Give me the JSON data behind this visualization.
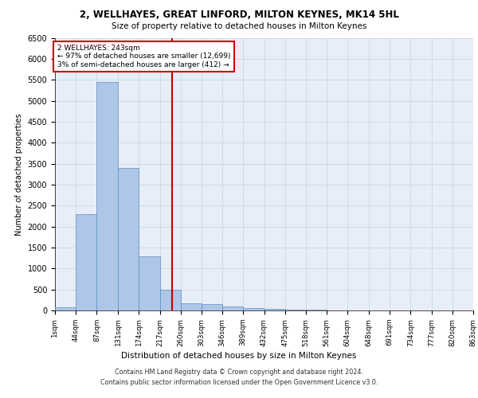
{
  "title1": "2, WELLHAYES, GREAT LINFORD, MILTON KEYNES, MK14 5HL",
  "title2": "Size of property relative to detached houses in Milton Keynes",
  "xlabel": "Distribution of detached houses by size in Milton Keynes",
  "ylabel": "Number of detached properties",
  "footer1": "Contains HM Land Registry data © Crown copyright and database right 2024.",
  "footer2": "Contains public sector information licensed under the Open Government Licence v3.0.",
  "annotation_title": "2 WELLHAYES: 243sqm",
  "annotation_line1": "← 97% of detached houses are smaller (12,699)",
  "annotation_line2": "3% of semi-detached houses are larger (412) →",
  "property_size": 243,
  "bar_values": [
    70,
    2300,
    5450,
    3400,
    1300,
    490,
    175,
    150,
    90,
    55,
    35,
    20,
    10,
    5,
    0,
    0,
    0,
    0,
    0,
    0
  ],
  "bin_edges": [
    1,
    44,
    87,
    131,
    174,
    217,
    260,
    303,
    346,
    389,
    432,
    475,
    518,
    561,
    604,
    648,
    691,
    734,
    777,
    820,
    863
  ],
  "bin_labels": [
    "1sqm",
    "44sqm",
    "87sqm",
    "131sqm",
    "174sqm",
    "217sqm",
    "260sqm",
    "303sqm",
    "346sqm",
    "389sqm",
    "432sqm",
    "475sqm",
    "518sqm",
    "561sqm",
    "604sqm",
    "648sqm",
    "691sqm",
    "734sqm",
    "777sqm",
    "820sqm",
    "863sqm"
  ],
  "bar_color": "#aec6e8",
  "bar_edge_color": "#5a8fc2",
  "vline_color": "#cc0000",
  "vline_x": 243,
  "annotation_box_color": "#ffffff",
  "annotation_box_edge": "#cc0000",
  "grid_color": "#d0d8e8",
  "background_color": "#e8eef8",
  "ylim": [
    0,
    6500
  ],
  "yticks": [
    0,
    500,
    1000,
    1500,
    2000,
    2500,
    3000,
    3500,
    4000,
    4500,
    5000,
    5500,
    6000,
    6500
  ]
}
